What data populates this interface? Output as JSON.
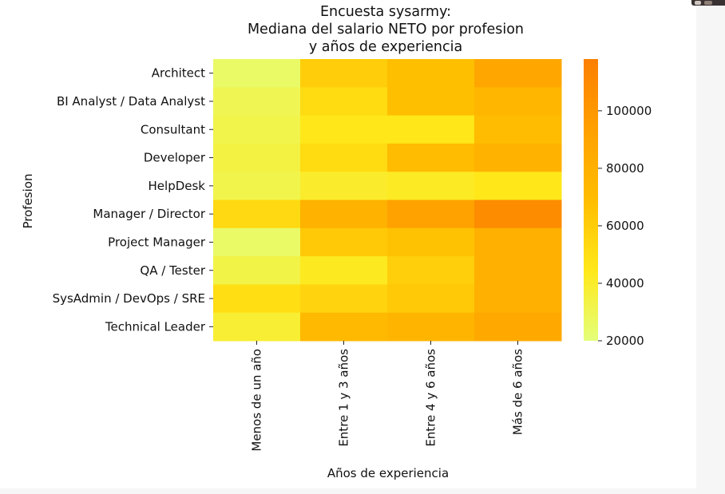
{
  "chart_data": {
    "type": "heatmap",
    "title": "Encuesta sysarmy:\nMediana del salario NETO por profesion\ny años de experiencia",
    "xlabel": "Años de experiencia",
    "ylabel": "Profesion",
    "x_categories": [
      "Menos de un año",
      "Entre 1 y 3 años",
      "Entre 4 y 6 años",
      "Más de 6 años"
    ],
    "y_categories": [
      "Architect",
      "BI Analyst / Data Analyst",
      "Consultant",
      "Developer",
      "HelpDesk",
      "Manager / Director",
      "Project Manager",
      "QA / Tester",
      "SysAdmin / DevOps / SRE",
      "Technical Leader"
    ],
    "values": [
      [
        25000,
        60000,
        68000,
        88000
      ],
      [
        30000,
        52000,
        68000,
        75000
      ],
      [
        32000,
        45000,
        45000,
        70000
      ],
      [
        34000,
        52000,
        70000,
        78000
      ],
      [
        32000,
        40000,
        42000,
        45000
      ],
      [
        53000,
        78000,
        92000,
        108000
      ],
      [
        25000,
        62000,
        66000,
        80000
      ],
      [
        33000,
        43000,
        59000,
        80000
      ],
      [
        50000,
        56000,
        62000,
        80000
      ],
      [
        38000,
        72000,
        76000,
        86000
      ]
    ],
    "colorbar": {
      "min": 20000,
      "max": 118000,
      "ticks": [
        20000,
        40000,
        60000,
        80000,
        100000
      ],
      "colormap": "Wistia"
    }
  }
}
